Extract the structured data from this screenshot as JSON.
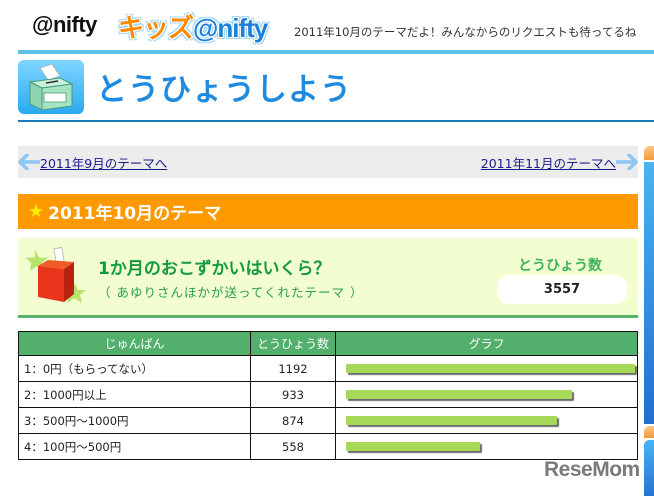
{
  "header": {
    "nifty_logo": "@nifty",
    "kids_logo": {
      "part1": "キッズ",
      "part2": "@nifty"
    },
    "tagline": "2011年10月のテーマだよ！みんなからのリクエストも待ってるね"
  },
  "page": {
    "title": "とうひょうしよう",
    "icon_label": "とうひょう"
  },
  "nav": {
    "prev_label": "2011年9月のテーマへ",
    "next_label": "2011年11月のテーマへ"
  },
  "month_heading": "2011年10月のテーマ",
  "theme": {
    "question": "1か月のおこずかいはいくら？",
    "subtitle": "（ あゆりさんほかが送ってくれたテーマ ）",
    "votes_label": "とうひょう数",
    "votes_total": "3557"
  },
  "table": {
    "headers": [
      "じゅんばん",
      "とうひょう数",
      "グラフ"
    ],
    "rows": [
      {
        "label": "1：0円（もらってない）",
        "votes": "1192",
        "bar_pct": 100
      },
      {
        "label": "2：1000円以上",
        "votes": "933",
        "bar_pct": 78.3
      },
      {
        "label": "3：500円～1000円",
        "votes": "874",
        "bar_pct": 73.3
      },
      {
        "label": "4：100円～500円",
        "votes": "558",
        "bar_pct": 46.8
      }
    ]
  },
  "colors": {
    "header_rule": "#5fc1e8",
    "title_blue": "#1e8be0",
    "month_bar": "#ff9900",
    "theme_bg": "#f2fdd0",
    "table_header": "#52b06c",
    "bar": "#a5d957"
  },
  "watermark": "ReseMom"
}
